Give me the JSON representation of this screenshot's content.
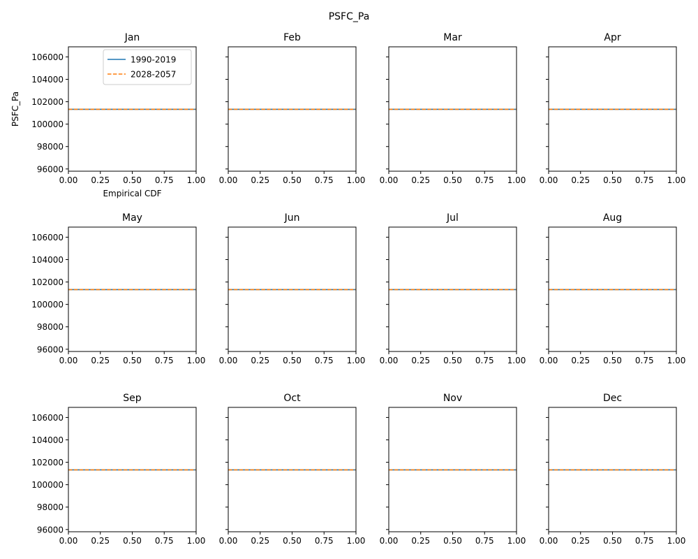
{
  "chart_data": {
    "type": "line",
    "title": "PSFC_Pa",
    "ylabel": "PSFC_Pa",
    "xlabel": "Empirical CDF",
    "xlim": [
      0,
      1
    ],
    "ylim": [
      95800,
      106900
    ],
    "x_ticks": [
      "0.00",
      "0.25",
      "0.50",
      "0.75",
      "1.00"
    ],
    "y_ticks": [
      "96000",
      "98000",
      "100000",
      "102000",
      "104000",
      "106000"
    ],
    "legend_position": "upper right",
    "legend": [
      {
        "label": "1990-2019",
        "color": "#1f77b4",
        "style": "solid"
      },
      {
        "label": "2028-2057",
        "color": "#ff7f0e",
        "style": "dashed"
      }
    ],
    "panels": [
      {
        "title": "Jan",
        "series": [
          {
            "name": "1990-2019",
            "x": [
              0,
              1
            ],
            "y": [
              101325,
              101325
            ]
          },
          {
            "name": "2028-2057",
            "x": [
              0,
              1
            ],
            "y": [
              101325,
              101325
            ]
          }
        ]
      },
      {
        "title": "Feb",
        "series": [
          {
            "name": "1990-2019",
            "x": [
              0,
              1
            ],
            "y": [
              101325,
              101325
            ]
          },
          {
            "name": "2028-2057",
            "x": [
              0,
              1
            ],
            "y": [
              101325,
              101325
            ]
          }
        ]
      },
      {
        "title": "Mar",
        "series": [
          {
            "name": "1990-2019",
            "x": [
              0,
              1
            ],
            "y": [
              101325,
              101325
            ]
          },
          {
            "name": "2028-2057",
            "x": [
              0,
              1
            ],
            "y": [
              101325,
              101325
            ]
          }
        ]
      },
      {
        "title": "Apr",
        "series": [
          {
            "name": "1990-2019",
            "x": [
              0,
              1
            ],
            "y": [
              101325,
              101325
            ]
          },
          {
            "name": "2028-2057",
            "x": [
              0,
              1
            ],
            "y": [
              101325,
              101325
            ]
          }
        ]
      },
      {
        "title": "May",
        "series": [
          {
            "name": "1990-2019",
            "x": [
              0,
              1
            ],
            "y": [
              101325,
              101325
            ]
          },
          {
            "name": "2028-2057",
            "x": [
              0,
              1
            ],
            "y": [
              101325,
              101325
            ]
          }
        ]
      },
      {
        "title": "Jun",
        "series": [
          {
            "name": "1990-2019",
            "x": [
              0,
              1
            ],
            "y": [
              101325,
              101325
            ]
          },
          {
            "name": "2028-2057",
            "x": [
              0,
              1
            ],
            "y": [
              101325,
              101325
            ]
          }
        ]
      },
      {
        "title": "Jul",
        "series": [
          {
            "name": "1990-2019",
            "x": [
              0,
              1
            ],
            "y": [
              101325,
              101325
            ]
          },
          {
            "name": "2028-2057",
            "x": [
              0,
              1
            ],
            "y": [
              101325,
              101325
            ]
          }
        ]
      },
      {
        "title": "Aug",
        "series": [
          {
            "name": "1990-2019",
            "x": [
              0,
              1
            ],
            "y": [
              101325,
              101325
            ]
          },
          {
            "name": "2028-2057",
            "x": [
              0,
              1
            ],
            "y": [
              101325,
              101325
            ]
          }
        ]
      },
      {
        "title": "Sep",
        "series": [
          {
            "name": "1990-2019",
            "x": [
              0,
              1
            ],
            "y": [
              101325,
              101325
            ]
          },
          {
            "name": "2028-2057",
            "x": [
              0,
              1
            ],
            "y": [
              101325,
              101325
            ]
          }
        ]
      },
      {
        "title": "Oct",
        "series": [
          {
            "name": "1990-2019",
            "x": [
              0,
              1
            ],
            "y": [
              101325,
              101325
            ]
          },
          {
            "name": "2028-2057",
            "x": [
              0,
              1
            ],
            "y": [
              101325,
              101325
            ]
          }
        ]
      },
      {
        "title": "Nov",
        "series": [
          {
            "name": "1990-2019",
            "x": [
              0,
              1
            ],
            "y": [
              101325,
              101325
            ]
          },
          {
            "name": "2028-2057",
            "x": [
              0,
              1
            ],
            "y": [
              101325,
              101325
            ]
          }
        ]
      },
      {
        "title": "Dec",
        "series": [
          {
            "name": "1990-2019",
            "x": [
              0,
              1
            ],
            "y": [
              101325,
              101325
            ]
          },
          {
            "name": "2028-2057",
            "x": [
              0,
              1
            ],
            "y": [
              101325,
              101325
            ]
          }
        ]
      }
    ]
  }
}
